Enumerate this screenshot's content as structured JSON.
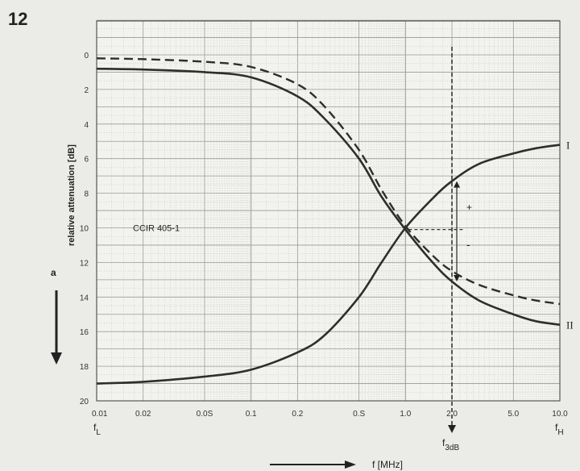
{
  "figure_number": "12",
  "chart_data": {
    "type": "line",
    "title": "",
    "xlabel": "f [MHz]",
    "ylabel": "relative attenuation [dB]",
    "y_symbol": "a",
    "x_scale": "log",
    "y_inverted": true,
    "xlim": [
      0.01,
      10
    ],
    "ylim": [
      0,
      20
    ],
    "x_ticks": [
      {
        "value": 0.01,
        "label": "0.01"
      },
      {
        "value": 0.02,
        "label": "0.02"
      },
      {
        "value": 0.05,
        "label": "0.0S"
      },
      {
        "value": 0.1,
        "label": "0.1"
      },
      {
        "value": 0.2,
        "label": "0.2"
      },
      {
        "value": 0.5,
        "label": "0.S"
      },
      {
        "value": 1,
        "label": "1.0"
      },
      {
        "value": 2,
        "label": "2.0"
      },
      {
        "value": 5,
        "label": "5.0"
      },
      {
        "value": 10,
        "label": "10.0"
      }
    ],
    "y_ticks": [
      0,
      2,
      4,
      6,
      8,
      10,
      12,
      14,
      16,
      18,
      20
    ],
    "grid": true,
    "series": [
      {
        "name": "I",
        "style": "solid",
        "points": [
          [
            0.01,
            19.0
          ],
          [
            0.02,
            18.9
          ],
          [
            0.05,
            18.6
          ],
          [
            0.1,
            18.2
          ],
          [
            0.2,
            17.2
          ],
          [
            0.3,
            16.2
          ],
          [
            0.5,
            14.0
          ],
          [
            0.7,
            12.0
          ],
          [
            1.0,
            10.0
          ],
          [
            1.5,
            8.3
          ],
          [
            2.0,
            7.3
          ],
          [
            3.0,
            6.3
          ],
          [
            5.0,
            5.7
          ],
          [
            7.0,
            5.4
          ],
          [
            10.0,
            5.2
          ]
        ]
      },
      {
        "name": "II",
        "style": "solid",
        "points": [
          [
            0.01,
            0.8
          ],
          [
            0.02,
            0.85
          ],
          [
            0.05,
            1.0
          ],
          [
            0.1,
            1.3
          ],
          [
            0.2,
            2.4
          ],
          [
            0.3,
            3.7
          ],
          [
            0.5,
            6.0
          ],
          [
            0.7,
            8.2
          ],
          [
            1.0,
            10.1
          ],
          [
            1.5,
            12.0
          ],
          [
            2.0,
            13.1
          ],
          [
            3.0,
            14.2
          ],
          [
            5.0,
            15.0
          ],
          [
            7.0,
            15.4
          ],
          [
            10.0,
            15.6
          ]
        ]
      },
      {
        "name": "",
        "style": "dashed",
        "points": [
          [
            0.01,
            0.2
          ],
          [
            0.02,
            0.25
          ],
          [
            0.05,
            0.4
          ],
          [
            0.1,
            0.7
          ],
          [
            0.2,
            1.7
          ],
          [
            0.3,
            3.0
          ],
          [
            0.5,
            5.5
          ],
          [
            0.7,
            7.8
          ],
          [
            1.0,
            9.9
          ],
          [
            1.5,
            11.6
          ],
          [
            2.0,
            12.5
          ],
          [
            3.0,
            13.3
          ],
          [
            5.0,
            13.9
          ],
          [
            7.0,
            14.2
          ],
          [
            10.0,
            14.4
          ]
        ]
      }
    ],
    "annotations": {
      "standard_label": "CCIR 405-1",
      "f_low": "f",
      "f_low_sub": "L",
      "f_high": "f",
      "f_high_sub": "H",
      "f_3db": "f",
      "f_3db_sub": "3dB",
      "f_3db_x": 2.0,
      "plus": "+",
      "minus": "-",
      "plus_arrow_range": [
        7.3,
        10.1
      ],
      "minus_arrow_range": [
        10.1,
        13.1
      ]
    }
  }
}
